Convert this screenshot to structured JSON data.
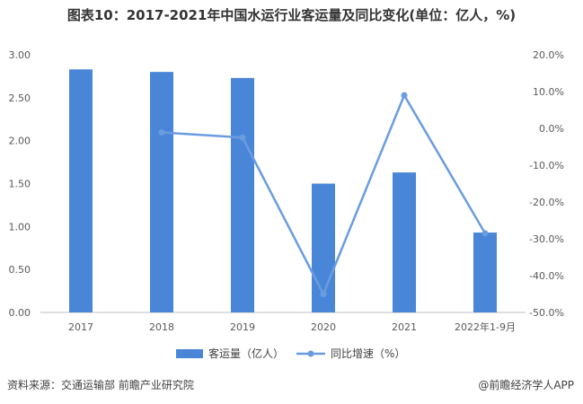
{
  "title": "图表10：2017-2021年中国水运行业客运量及同比变化(单位：亿人，%)",
  "footer": {
    "source": "资料来源：交通运输部 前瞻产业研究院",
    "brand": "@前瞻经济学人APP"
  },
  "colors": {
    "bar": "#4a86d8",
    "line": "#6a9ce0",
    "axis": "#bfbfbf"
  },
  "chart_data": {
    "type": "bar+line",
    "categories": [
      "2017",
      "2018",
      "2019",
      "2020",
      "2021",
      "2022年1-9月"
    ],
    "series": [
      {
        "name": "客运量（亿人）",
        "type": "bar",
        "axis": "left",
        "values": [
          2.83,
          2.8,
          2.73,
          1.5,
          1.63,
          0.93
        ]
      },
      {
        "name": "同比增速（%）",
        "type": "line",
        "axis": "right",
        "values": [
          null,
          -1.1,
          -2.5,
          -45.0,
          9.0,
          -28.5
        ]
      }
    ],
    "y_left": {
      "min": 0,
      "max": 3,
      "ticks": [
        "0.00",
        "0.50",
        "1.00",
        "1.50",
        "2.00",
        "2.50",
        "3.00"
      ]
    },
    "y_right": {
      "min": -50,
      "max": 20,
      "ticks": [
        "-50.0%",
        "-40.0%",
        "-30.0%",
        "-20.0%",
        "-10.0%",
        "0.0%",
        "10.0%",
        "20.0%"
      ]
    },
    "grid": false,
    "legend": "bottom"
  }
}
